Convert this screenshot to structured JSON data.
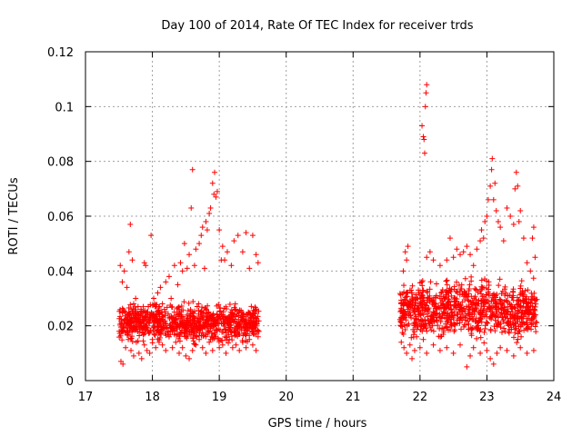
{
  "chart_data": {
    "type": "scatter",
    "title": "Day 100 of 2014, Rate Of TEC Index for receiver trds",
    "xlabel": "GPS time / hours",
    "ylabel": "ROTI / TECUs",
    "xlim": [
      17,
      24
    ],
    "ylim": [
      0,
      0.12
    ],
    "x_ticks": [
      "17",
      "18",
      "19",
      "20",
      "21",
      "22",
      "23",
      "24"
    ],
    "y_ticks": [
      "0",
      "0.02",
      "0.04",
      "0.06",
      "0.08",
      "0.1",
      "0.12"
    ],
    "x_tick_values": [
      17,
      18,
      19,
      20,
      21,
      22,
      23,
      24
    ],
    "y_tick_values": [
      0,
      0.02,
      0.04,
      0.06,
      0.08,
      0.1,
      0.12
    ],
    "grid": true,
    "marker": "+",
    "marker_color": "#ff0000",
    "series": [
      {
        "name": "ROTI",
        "points": [
          [
            17.52,
            0.042
          ],
          [
            17.55,
            0.036
          ],
          [
            17.58,
            0.04
          ],
          [
            17.6,
            0.025
          ],
          [
            17.62,
            0.034
          ],
          [
            17.65,
            0.047
          ],
          [
            17.67,
            0.057
          ],
          [
            17.7,
            0.044
          ],
          [
            17.72,
            0.028
          ],
          [
            17.75,
            0.03
          ],
          [
            17.8,
            0.024
          ],
          [
            17.83,
            0.026
          ],
          [
            17.88,
            0.043
          ],
          [
            17.9,
            0.042
          ],
          [
            17.93,
            0.025
          ],
          [
            17.98,
            0.053
          ],
          [
            18.02,
            0.03
          ],
          [
            18.05,
            0.027
          ],
          [
            18.08,
            0.032
          ],
          [
            18.12,
            0.034
          ],
          [
            18.15,
            0.028
          ],
          [
            18.2,
            0.036
          ],
          [
            18.25,
            0.038
          ],
          [
            18.28,
            0.03
          ],
          [
            18.33,
            0.042
          ],
          [
            18.38,
            0.035
          ],
          [
            18.42,
            0.043
          ],
          [
            18.45,
            0.04
          ],
          [
            18.48,
            0.05
          ],
          [
            18.52,
            0.041
          ],
          [
            18.55,
            0.046
          ],
          [
            18.58,
            0.063
          ],
          [
            18.6,
            0.077
          ],
          [
            18.63,
            0.042
          ],
          [
            18.65,
            0.048
          ],
          [
            18.7,
            0.05
          ],
          [
            18.73,
            0.053
          ],
          [
            18.75,
            0.056
          ],
          [
            18.78,
            0.041
          ],
          [
            18.8,
            0.058
          ],
          [
            18.82,
            0.055
          ],
          [
            18.85,
            0.061
          ],
          [
            18.87,
            0.063
          ],
          [
            18.9,
            0.072
          ],
          [
            18.92,
            0.068
          ],
          [
            18.93,
            0.076
          ],
          [
            18.95,
            0.067
          ],
          [
            18.97,
            0.069
          ],
          [
            19.0,
            0.055
          ],
          [
            19.03,
            0.044
          ],
          [
            19.05,
            0.049
          ],
          [
            19.08,
            0.044
          ],
          [
            19.12,
            0.047
          ],
          [
            19.18,
            0.042
          ],
          [
            19.22,
            0.051
          ],
          [
            19.28,
            0.053
          ],
          [
            19.35,
            0.047
          ],
          [
            19.4,
            0.054
          ],
          [
            19.45,
            0.041
          ],
          [
            19.5,
            0.053
          ],
          [
            19.55,
            0.046
          ],
          [
            19.58,
            0.043
          ],
          [
            17.53,
            0.007
          ],
          [
            17.56,
            0.006
          ],
          [
            17.6,
            0.012
          ],
          [
            17.64,
            0.015
          ],
          [
            17.68,
            0.011
          ],
          [
            17.72,
            0.009
          ],
          [
            17.76,
            0.014
          ],
          [
            17.8,
            0.01
          ],
          [
            17.84,
            0.008
          ],
          [
            17.88,
            0.013
          ],
          [
            17.92,
            0.011
          ],
          [
            17.96,
            0.01
          ],
          [
            18.0,
            0.015
          ],
          [
            18.05,
            0.012
          ],
          [
            18.1,
            0.014
          ],
          [
            18.15,
            0.013
          ],
          [
            18.2,
            0.011
          ],
          [
            18.25,
            0.016
          ],
          [
            18.3,
            0.012
          ],
          [
            18.35,
            0.014
          ],
          [
            18.4,
            0.01
          ],
          [
            18.45,
            0.012
          ],
          [
            18.5,
            0.009
          ],
          [
            18.55,
            0.008
          ],
          [
            18.6,
            0.011
          ],
          [
            18.65,
            0.013
          ],
          [
            18.7,
            0.015
          ],
          [
            18.75,
            0.012
          ],
          [
            18.8,
            0.01
          ],
          [
            18.85,
            0.014
          ],
          [
            18.9,
            0.011
          ],
          [
            18.95,
            0.016
          ],
          [
            19.0,
            0.012
          ],
          [
            19.05,
            0.013
          ],
          [
            19.1,
            0.01
          ],
          [
            19.15,
            0.015
          ],
          [
            19.2,
            0.012
          ],
          [
            19.25,
            0.013
          ],
          [
            19.3,
            0.011
          ],
          [
            19.35,
            0.014
          ],
          [
            19.4,
            0.012
          ],
          [
            19.45,
            0.015
          ],
          [
            19.5,
            0.013
          ],
          [
            19.55,
            0.011
          ],
          [
            19.58,
            0.016
          ],
          [
            22.03,
            0.093
          ],
          [
            22.05,
            0.089
          ],
          [
            22.06,
            0.088
          ],
          [
            22.07,
            0.083
          ],
          [
            22.08,
            0.1
          ],
          [
            22.09,
            0.105
          ],
          [
            22.1,
            0.108
          ],
          [
            21.72,
            0.028
          ],
          [
            21.75,
            0.04
          ],
          [
            21.78,
            0.047
          ],
          [
            21.8,
            0.044
          ],
          [
            21.82,
            0.049
          ],
          [
            21.85,
            0.033
          ],
          [
            21.88,
            0.032
          ],
          [
            21.92,
            0.025
          ],
          [
            22.0,
            0.028
          ],
          [
            22.05,
            0.033
          ],
          [
            22.1,
            0.045
          ],
          [
            22.15,
            0.047
          ],
          [
            22.2,
            0.044
          ],
          [
            22.3,
            0.042
          ],
          [
            22.4,
            0.044
          ],
          [
            22.45,
            0.052
          ],
          [
            22.5,
            0.045
          ],
          [
            22.55,
            0.048
          ],
          [
            22.6,
            0.046
          ],
          [
            22.65,
            0.047
          ],
          [
            22.7,
            0.049
          ],
          [
            22.75,
            0.046
          ],
          [
            22.8,
            0.042
          ],
          [
            22.85,
            0.048
          ],
          [
            22.9,
            0.051
          ],
          [
            22.92,
            0.055
          ],
          [
            22.95,
            0.052
          ],
          [
            22.97,
            0.058
          ],
          [
            23.0,
            0.06
          ],
          [
            23.02,
            0.066
          ],
          [
            23.05,
            0.071
          ],
          [
            23.07,
            0.077
          ],
          [
            23.08,
            0.081
          ],
          [
            23.1,
            0.066
          ],
          [
            23.12,
            0.072
          ],
          [
            23.14,
            0.062
          ],
          [
            23.17,
            0.058
          ],
          [
            23.2,
            0.056
          ],
          [
            23.25,
            0.051
          ],
          [
            23.3,
            0.063
          ],
          [
            23.35,
            0.06
          ],
          [
            23.4,
            0.057
          ],
          [
            23.42,
            0.07
          ],
          [
            23.44,
            0.076
          ],
          [
            23.46,
            0.071
          ],
          [
            23.48,
            0.058
          ],
          [
            23.5,
            0.062
          ],
          [
            23.55,
            0.052
          ],
          [
            23.6,
            0.043
          ],
          [
            23.65,
            0.04
          ],
          [
            23.68,
            0.052
          ],
          [
            23.7,
            0.056
          ],
          [
            23.72,
            0.045
          ],
          [
            21.72,
            0.014
          ],
          [
            21.76,
            0.012
          ],
          [
            21.8,
            0.01
          ],
          [
            21.85,
            0.013
          ],
          [
            21.88,
            0.008
          ],
          [
            21.92,
            0.011
          ],
          [
            22.0,
            0.012
          ],
          [
            22.05,
            0.015
          ],
          [
            22.1,
            0.01
          ],
          [
            22.2,
            0.013
          ],
          [
            22.3,
            0.011
          ],
          [
            22.4,
            0.012
          ],
          [
            22.5,
            0.01
          ],
          [
            22.6,
            0.013
          ],
          [
            22.7,
            0.005
          ],
          [
            22.75,
            0.009
          ],
          [
            22.8,
            0.012
          ],
          [
            22.9,
            0.01
          ],
          [
            23.0,
            0.011
          ],
          [
            23.05,
            0.008
          ],
          [
            23.1,
            0.006
          ],
          [
            23.15,
            0.01
          ],
          [
            23.2,
            0.012
          ],
          [
            23.3,
            0.011
          ],
          [
            23.4,
            0.009
          ],
          [
            23.5,
            0.012
          ],
          [
            23.6,
            0.01
          ],
          [
            23.7,
            0.011
          ]
        ],
        "dense_bands": [
          {
            "x_range": [
              17.5,
              19.6
            ],
            "y_range": [
              0.012,
              0.03
            ],
            "count": 900
          },
          {
            "x_range": [
              21.7,
              23.75
            ],
            "y_range": [
              0.012,
              0.04
            ],
            "count": 900
          }
        ]
      }
    ]
  }
}
